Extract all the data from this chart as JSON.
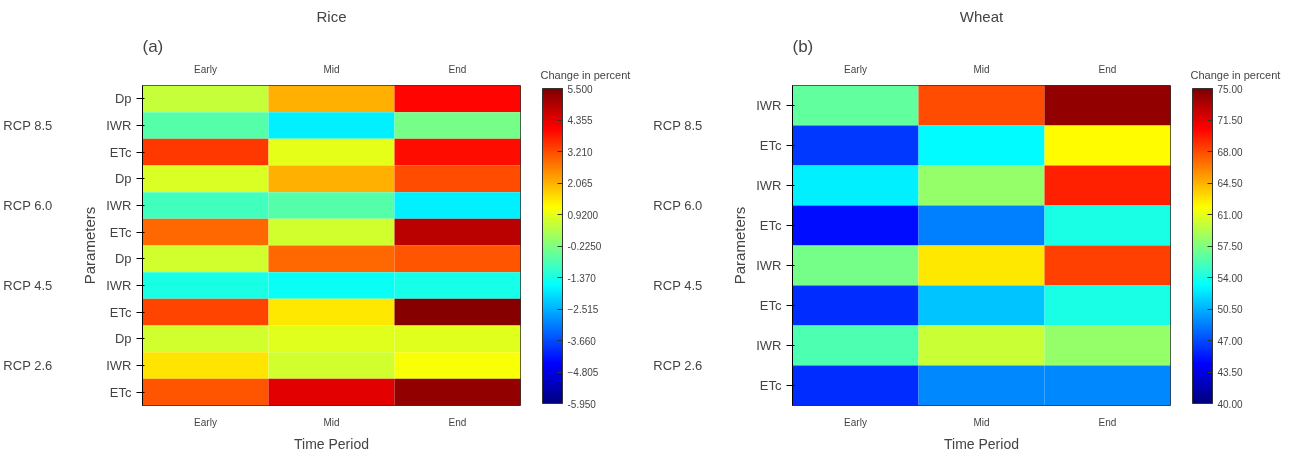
{
  "chart_data": [
    {
      "type": "heatmap",
      "title": "Rice",
      "xlabel": "Time Period",
      "ylabel": "Parameters",
      "clabel": "Change in percent",
      "annotations": [
        "(a)",
        "RCP 8.5",
        "RCP 6.0",
        "RCP 4.5",
        "RCP 2.6"
      ],
      "categories": [
        "Early",
        "Mid",
        "End"
      ],
      "y_categories": [
        "Dp",
        "IWR",
        "ETc",
        "Dp",
        "IWR",
        "ETc",
        "Dp",
        "IWR",
        "ETc",
        "Dp",
        "IWR",
        "ETc"
      ],
      "cells": [
        [
          0.58,
          2.07,
          4.0
        ],
        [
          -0.68,
          -1.83,
          -0.34
        ],
        [
          3.44,
          0.92,
          3.9
        ],
        [
          0.8,
          2.07,
          3.2
        ],
        [
          -0.91,
          -0.68,
          -1.83
        ],
        [
          2.87,
          0.69,
          4.8
        ],
        [
          0.69,
          2.87,
          3.1
        ],
        [
          -1.37,
          -1.54,
          -1.4
        ],
        [
          3.3,
          1.44,
          5.4
        ],
        [
          0.69,
          0.85,
          0.85
        ],
        [
          1.5,
          0.69,
          1.15
        ],
        [
          3.1,
          4.35,
          5.27
        ]
      ],
      "clim": [
        -5.95,
        5.5
      ],
      "cticks": [
        {
          "value": 5.5,
          "label": "5.500"
        },
        4.355,
        {
          "value": 3.21,
          "label": "3.210"
        },
        2.065,
        {
          "value": 0.92,
          "label": "0.9200"
        },
        {
          "value": -0.225,
          "label": "-0.2250"
        },
        {
          "value": -1.37,
          "label": "-1.370"
        },
        -2.515,
        {
          "value": -3.66,
          "label": "-3.660"
        },
        -4.805,
        {
          "value": -5.95,
          "label": "-5.950"
        }
      ]
    },
    {
      "type": "heatmap",
      "title": "Wheat",
      "xlabel": "Time Period",
      "ylabel": "Parameters",
      "clabel": "Change in percent",
      "annotations": [
        "(b)",
        "RCP 8.5",
        "RCP 6.0",
        "RCP 4.5",
        "RCP 2.6"
      ],
      "categories": [
        "Early",
        "Mid",
        "End"
      ],
      "y_categories": [
        "IWR",
        "ETc",
        "IWR",
        "ETc",
        "IWR",
        "ETc",
        "IWR",
        "ETc"
      ],
      "cells": [
        [
          56.5,
          68.0,
          74.3
        ],
        [
          46.3,
          53.0,
          62.0
        ],
        [
          52.6,
          58.2,
          69.4
        ],
        [
          44.9,
          48.8,
          54.0
        ],
        [
          57.2,
          62.6,
          68.4
        ],
        [
          46.0,
          51.2,
          54.0
        ],
        [
          55.8,
          60.0,
          58.2
        ],
        [
          46.0,
          49.1,
          49.1
        ]
      ],
      "clim": [
        40,
        75
      ],
      "cticks": [
        {
          "value": 75,
          "label": "75.00"
        },
        {
          "value": 71.5,
          "label": "71.50"
        },
        {
          "value": 68,
          "label": "68.00"
        },
        {
          "value": 64.5,
          "label": "64.50"
        },
        {
          "value": 61,
          "label": "61.00"
        },
        {
          "value": 57.5,
          "label": "57.50"
        },
        {
          "value": 54,
          "label": "54.00"
        },
        {
          "value": 50.5,
          "label": "50.50"
        },
        {
          "value": 47,
          "label": "47.00"
        },
        {
          "value": 43.5,
          "label": "43.50"
        },
        {
          "value": 40,
          "label": "40.00"
        }
      ]
    }
  ]
}
